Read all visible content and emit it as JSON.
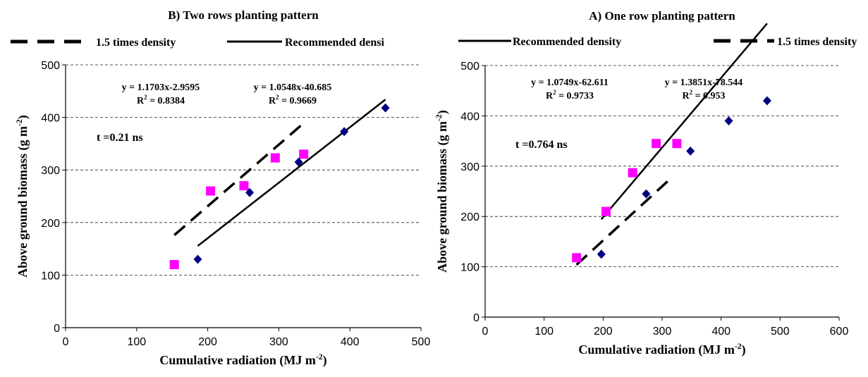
{
  "chart_data": [
    {
      "type": "scatter",
      "title": "B) Two rows planting pattern",
      "xlabel": "Cumulative radiation (MJ m",
      "xlabel_sup": "-2",
      "xlabel_end": ")",
      "ylabel": "Above ground biomass (g m",
      "ylabel_sup": "-2",
      "ylabel_end": ")",
      "xlim": [
        0,
        500
      ],
      "ylim": [
        0,
        500
      ],
      "x_ticks": [
        "0",
        "100",
        "200",
        "300",
        "400",
        "500"
      ],
      "y_ticks": [
        "0",
        "100",
        "200",
        "300",
        "400",
        "500"
      ],
      "grid": "horizontal dashed",
      "legend": [
        {
          "label": "1.5 times density",
          "style": "dashed"
        },
        {
          "label": "Recommended densi",
          "style": "solid"
        }
      ],
      "series": [
        {
          "name": "1.5 times density",
          "marker": "square",
          "color": "#ff00ff",
          "x": [
            153,
            204,
            251,
            295,
            335
          ],
          "y": [
            120,
            260,
            270,
            323,
            330
          ]
        },
        {
          "name": "Recommended densi",
          "marker": "diamond",
          "color": "#000080",
          "x": [
            186,
            259,
            328,
            392,
            450
          ],
          "y": [
            130,
            257,
            315,
            373,
            418
          ]
        }
      ],
      "trendlines": [
        {
          "series": "1.5 times density",
          "style": "dashed",
          "x_range": [
            153,
            335
          ],
          "eq": "y = 1.1703x-2.9595",
          "r2_label": "R",
          "r2_sup": "2",
          "r2_value": " = 0.8384"
        },
        {
          "series": "Recommended densi",
          "style": "solid",
          "x_range": [
            186,
            450
          ],
          "eq": "y = 1.0548x-40.685",
          "r2_label": "R",
          "r2_sup": "2",
          "r2_value": " = 0.9669"
        }
      ],
      "annotation": "t =0.21 ns"
    },
    {
      "type": "scatter",
      "title": "A) One row planting pattern",
      "xlabel": "Cumulative radiation (MJ m",
      "xlabel_sup": "-2",
      "xlabel_end": ")",
      "ylabel": "Above ground biomass (g m",
      "ylabel_sup": "-2",
      "ylabel_end": ")",
      "xlim": [
        0,
        600
      ],
      "ylim": [
        0,
        500
      ],
      "x_ticks": [
        "0",
        "100",
        "200",
        "300",
        "400",
        "500",
        "600"
      ],
      "y_ticks": [
        "0",
        "100",
        "200",
        "300",
        "400",
        "500"
      ],
      "grid": "horizontal dashed",
      "legend": [
        {
          "label": "Recommended density",
          "style": "solid"
        },
        {
          "label": "1.5 times density",
          "style": "dashed"
        }
      ],
      "series": [
        {
          "name": "1.5 times density",
          "marker": "square",
          "color": "#ff00ff",
          "x": [
            155,
            205,
            250,
            290,
            325
          ],
          "y": [
            118,
            210,
            287,
            345,
            345
          ]
        },
        {
          "name": "Recommended density",
          "marker": "diamond",
          "color": "#000080",
          "x": [
            197,
            273,
            348,
            413,
            478
          ],
          "y": [
            125,
            245,
            330,
            390,
            430
          ]
        }
      ],
      "trendlines": [
        {
          "series": "1.5 times density",
          "style": "dashed",
          "x_range": [
            155,
            312
          ],
          "eq": "y = 1.0749x-62.611",
          "r2_label": "R",
          "r2_sup": "2",
          "r2_value": " = 0.9733"
        },
        {
          "series": "Recommended density",
          "style": "solid",
          "x_range": [
            197,
            478
          ],
          "eq": "y = 1.3851x-78.544",
          "r2_label": "R",
          "r2_sup": "2",
          "r2_value": " = 0.953"
        }
      ],
      "annotation": "t =0.764 ns"
    }
  ]
}
